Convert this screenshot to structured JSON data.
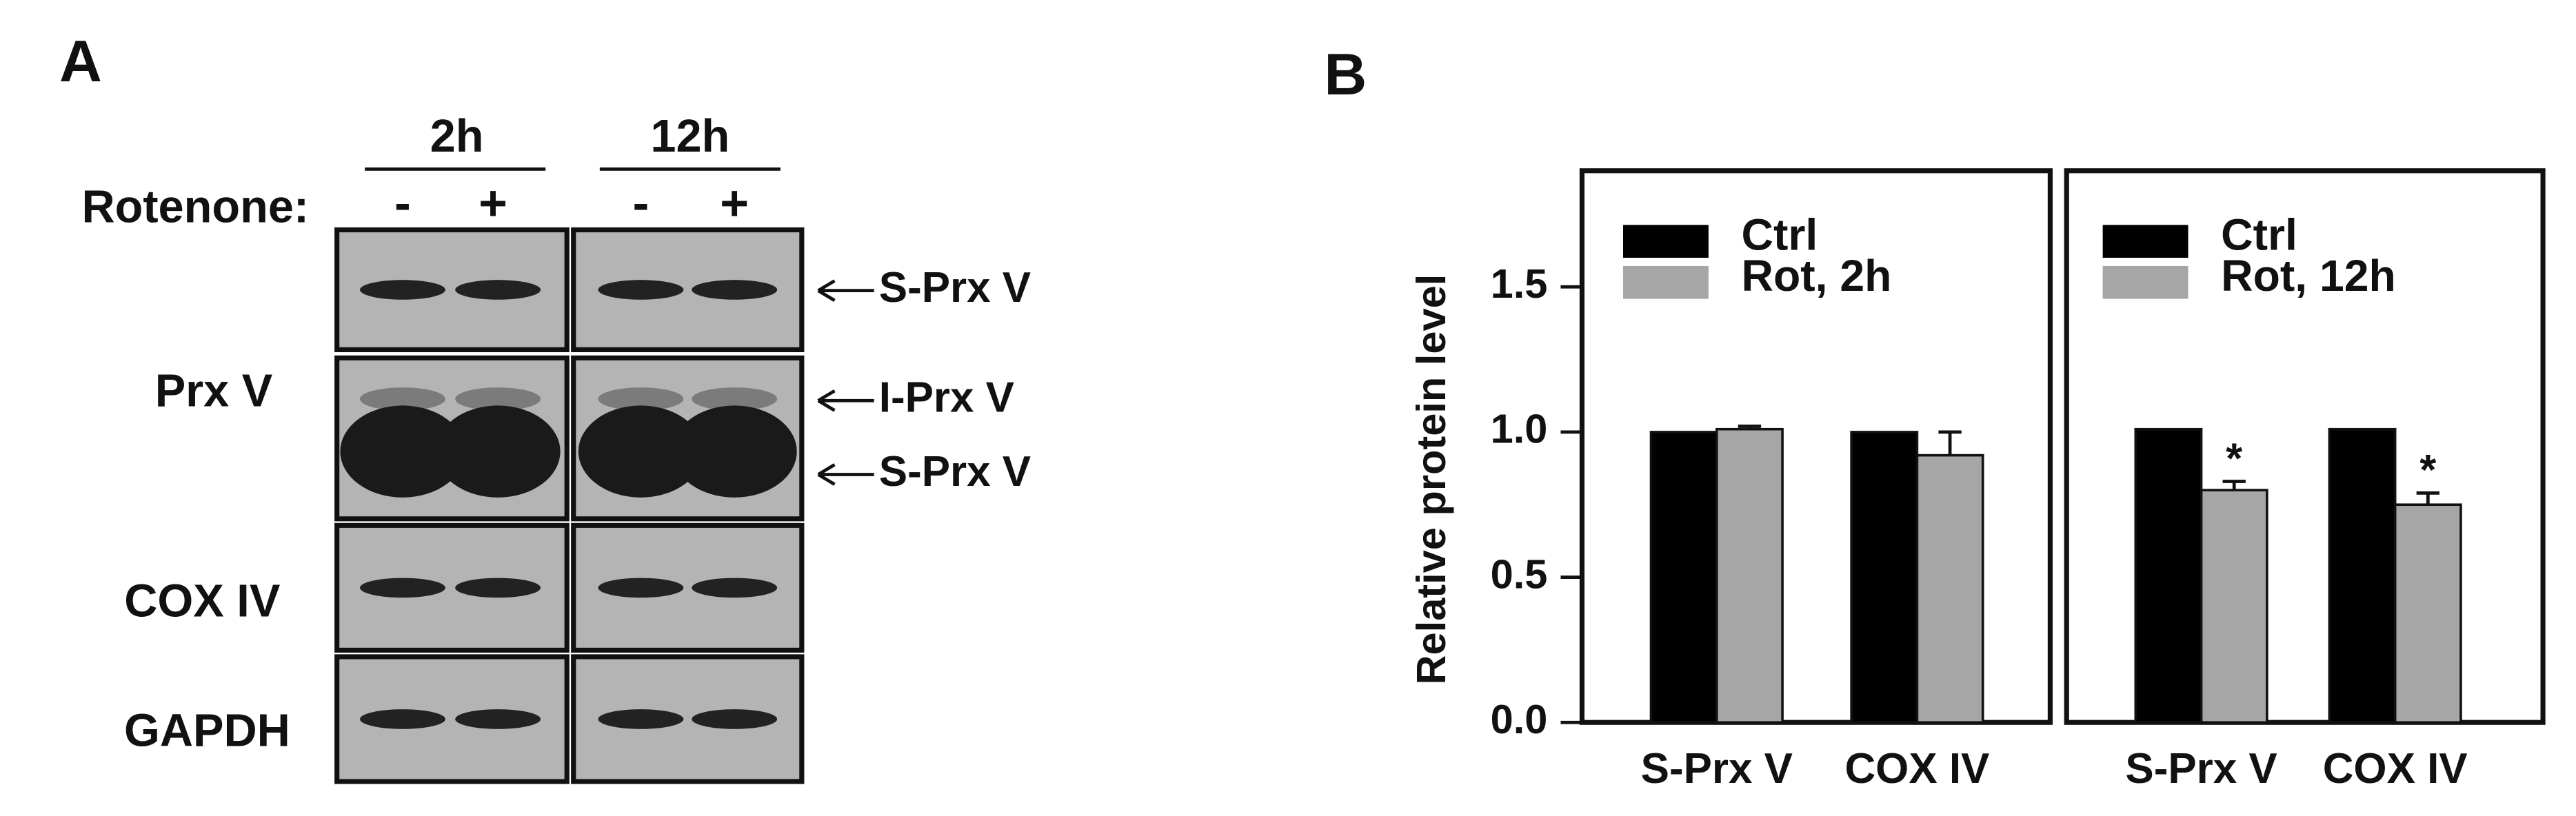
{
  "panel_a": {
    "label": "A",
    "time_labels": [
      "2h",
      "12h"
    ],
    "treatment_label": "Rotenone:",
    "treatment_signs": [
      "-",
      "+",
      "-",
      "+"
    ],
    "row_labels": [
      "Prx V",
      "COX IV",
      "GAPDH"
    ],
    "band_labels": [
      "S-Prx V",
      "I-Prx V",
      "S-Prx V"
    ]
  },
  "chart_data": {
    "type": "bar",
    "panel_label": "B",
    "y_label": "Relative protein level",
    "ylim": [
      0,
      1.9
    ],
    "yticks": [
      {
        "value": 0,
        "label": "0.0"
      },
      {
        "value": 0.5,
        "label": "0.5"
      },
      {
        "value": 1,
        "label": "1.0"
      },
      {
        "value": 1.5,
        "label": "1.5"
      }
    ],
    "panels": [
      {
        "categories": [
          "S-Prx V",
          "COX IV"
        ],
        "series": [
          {
            "name": "Ctrl",
            "color": "#000000",
            "values": [
              1,
              1
            ]
          },
          {
            "name": "Rot, 2h",
            "color": "#a6a6a6",
            "values": [
              1.01,
              0.92
            ],
            "errors": [
              0.01,
              0.08
            ]
          }
        ]
      },
      {
        "categories": [
          "S-Prx V",
          "COX IV"
        ],
        "series": [
          {
            "name": "Ctrl",
            "color": "#000000",
            "values": [
              1.01,
              1.01
            ]
          },
          {
            "name": "Rot, 12h",
            "color": "#a6a6a6",
            "values": [
              0.8,
              0.75
            ],
            "errors": [
              0.03,
              0.04
            ]
          }
        ],
        "annotations": [
          "*",
          "*"
        ]
      }
    ]
  }
}
